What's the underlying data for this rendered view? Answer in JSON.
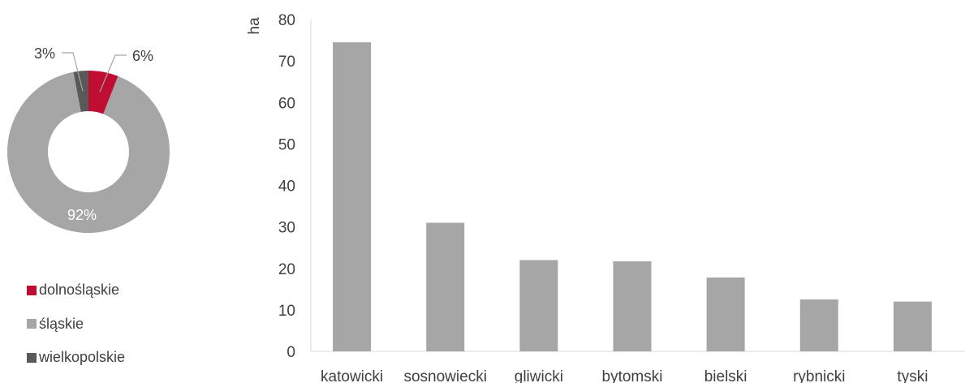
{
  "chart_data": [
    {
      "type": "pie",
      "donut": true,
      "slices": [
        {
          "label": "dolnośląskie",
          "value": 6,
          "display": "6%",
          "color": "#c00d32"
        },
        {
          "label": "śląskie",
          "value": 92,
          "display": "92%",
          "color": "#a6a6a6"
        },
        {
          "label": "wielkopolskie",
          "value": 3,
          "display": "3%",
          "color": "#595959"
        }
      ],
      "legend_position": "bottom"
    },
    {
      "type": "bar",
      "categories": [
        "katowicki",
        "sosnowiecki",
        "gliwicki",
        "bytomski",
        "bielski",
        "rybnicki",
        "tyski"
      ],
      "values": [
        74.5,
        31,
        22,
        21.7,
        17.8,
        12.5,
        12
      ],
      "ylabel": "ha",
      "ylim": [
        0,
        80
      ],
      "yticks": [
        0,
        10,
        20,
        30,
        40,
        50,
        60,
        70,
        80
      ],
      "bar_color": "#a6a6a6",
      "grid": false
    }
  ]
}
